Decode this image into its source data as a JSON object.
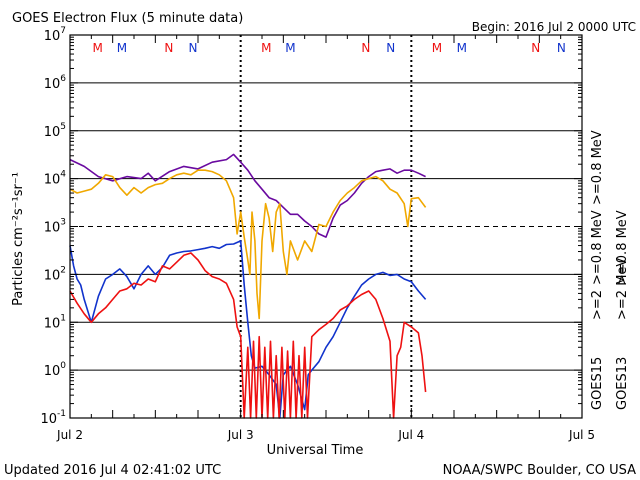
{
  "header": {
    "title": "GOES Electron Flux (5 minute data)",
    "begin": "Begin: 2016 Jul 2 0000 UTC"
  },
  "footer": {
    "updated": "Updated 2016 Jul  4 02:41:02 UTC",
    "credit": "NOAA/SWPC Boulder, CO USA"
  },
  "colors": {
    "red": "#ee1111",
    "orange": "#f0a800",
    "blue": "#1133cc",
    "purple": "#6a0aa0",
    "grid": "#000000"
  },
  "chart_data": {
    "type": "line",
    "title": "GOES Electron Flux (5 minute data)",
    "xlabel": "Universal Time",
    "ylabel": "Particles cm⁻²s⁻¹sr⁻¹",
    "yscale": "log",
    "ylim": [
      0.1,
      10000000
    ],
    "xlim": [
      0,
      72
    ],
    "x_unit": "hours since 2016 Jul 2 0000 UTC",
    "x_ticks": [
      {
        "x": 0,
        "label": "Jul 2"
      },
      {
        "x": 24,
        "label": "Jul 3"
      },
      {
        "x": 48,
        "label": "Jul 4"
      },
      {
        "x": 72,
        "label": "Jul 5"
      }
    ],
    "y_ticks": [
      {
        "v": 0.1,
        "base": "10",
        "exp": "-1"
      },
      {
        "v": 1,
        "base": "10",
        "exp": "0"
      },
      {
        "v": 10,
        "base": "10",
        "exp": "1"
      },
      {
        "v": 100,
        "base": "10",
        "exp": "2"
      },
      {
        "v": 1000,
        "base": "10",
        "exp": "3"
      },
      {
        "v": 10000,
        "base": "10",
        "exp": "4"
      },
      {
        "v": 100000,
        "base": "10",
        "exp": "5"
      },
      {
        "v": 1000000,
        "base": "10",
        "exp": "6"
      },
      {
        "v": 10000000,
        "base": "10",
        "exp": "7"
      }
    ],
    "threshold_line": 1000,
    "day_markers": [
      24,
      48
    ],
    "mn_markers": [
      {
        "x": 3.9,
        "letter": "M",
        "color": "red"
      },
      {
        "x": 7.3,
        "letter": "M",
        "color": "blue"
      },
      {
        "x": 13.9,
        "letter": "N",
        "color": "red"
      },
      {
        "x": 17.3,
        "letter": "N",
        "color": "blue"
      },
      {
        "x": 27.6,
        "letter": "M",
        "color": "red"
      },
      {
        "x": 31.0,
        "letter": "M",
        "color": "blue"
      },
      {
        "x": 41.6,
        "letter": "N",
        "color": "red"
      },
      {
        "x": 45.1,
        "letter": "N",
        "color": "blue"
      },
      {
        "x": 51.6,
        "letter": "M",
        "color": "red"
      },
      {
        "x": 55.1,
        "letter": "M",
        "color": "blue"
      },
      {
        "x": 65.5,
        "letter": "N",
        "color": "red"
      },
      {
        "x": 69.1,
        "letter": "N",
        "color": "blue"
      }
    ],
    "legend": [
      {
        "label": ">=0.8 MeV",
        "color": "orange"
      },
      {
        "label": ">=2 MeV",
        "color": "red"
      },
      {
        "label": ">=0.8 MeV",
        "color": "purple"
      },
      {
        "label": ">=2 MeV",
        "color": "blue"
      }
    ],
    "legend_groups": [
      {
        "label": "GOES13",
        "entries": [
          ">=2",
          ">=0.8 MeV"
        ]
      },
      {
        "label": "GOES15",
        "entries": [
          ">=2",
          ">=0.8 MeV"
        ]
      }
    ],
    "legend_text": {
      "goes13": "GOES13",
      "goes15": "GOES15",
      "ge2": ">=2",
      "ge08mev": ">=0.8 MeV"
    },
    "series": [
      {
        "name": "GOES15 >=0.8 MeV",
        "color": "purple",
        "points": [
          [
            0,
            25000
          ],
          [
            2,
            18000
          ],
          [
            4,
            11000
          ],
          [
            6,
            9000
          ],
          [
            8,
            11000
          ],
          [
            10,
            10000
          ],
          [
            11,
            13000
          ],
          [
            12,
            9000
          ],
          [
            14,
            14000
          ],
          [
            16,
            18000
          ],
          [
            18,
            16000
          ],
          [
            20,
            22000
          ],
          [
            22,
            25000
          ],
          [
            23,
            32000
          ],
          [
            24,
            22000
          ],
          [
            25,
            15000
          ],
          [
            26,
            9000
          ],
          [
            27,
            6000
          ],
          [
            28,
            4000
          ],
          [
            29,
            3500
          ],
          [
            30,
            2500
          ],
          [
            31,
            1800
          ],
          [
            32,
            1800
          ],
          [
            33,
            1300
          ],
          [
            34,
            1000
          ],
          [
            35,
            700
          ],
          [
            36,
            600
          ],
          [
            37,
            1500
          ],
          [
            38,
            2800
          ],
          [
            39,
            3500
          ],
          [
            40,
            5000
          ],
          [
            41,
            8000
          ],
          [
            42,
            11000
          ],
          [
            43,
            14000
          ],
          [
            44,
            15000
          ],
          [
            45,
            16000
          ],
          [
            46,
            13000
          ],
          [
            47,
            15000
          ],
          [
            48,
            15000
          ],
          [
            49,
            13000
          ],
          [
            50,
            11000
          ]
        ]
      },
      {
        "name": "GOES13 >=0.8 MeV",
        "color": "orange",
        "points": [
          [
            0,
            6000
          ],
          [
            1,
            5000
          ],
          [
            2,
            5500
          ],
          [
            3,
            6000
          ],
          [
            4,
            8000
          ],
          [
            5,
            12000
          ],
          [
            6,
            11000
          ],
          [
            7,
            6500
          ],
          [
            8,
            4500
          ],
          [
            9,
            6500
          ],
          [
            10,
            5000
          ],
          [
            11,
            6500
          ],
          [
            12,
            7500
          ],
          [
            13,
            8000
          ],
          [
            14,
            10000
          ],
          [
            15,
            12000
          ],
          [
            16,
            13000
          ],
          [
            17,
            12000
          ],
          [
            18,
            15000
          ],
          [
            19,
            15000
          ],
          [
            20,
            14000
          ],
          [
            21,
            12000
          ],
          [
            22,
            9000
          ],
          [
            23,
            4000
          ],
          [
            23.5,
            700
          ],
          [
            24,
            2000
          ],
          [
            24.5,
            600
          ],
          [
            25,
            200
          ],
          [
            25.3,
            100
          ],
          [
            25.6,
            2000
          ],
          [
            26,
            500
          ],
          [
            26.3,
            40
          ],
          [
            26.6,
            12
          ],
          [
            27,
            500
          ],
          [
            27.5,
            3000
          ],
          [
            28,
            1500
          ],
          [
            28.5,
            300
          ],
          [
            29,
            2000
          ],
          [
            29.5,
            3000
          ],
          [
            30,
            300
          ],
          [
            30.5,
            100
          ],
          [
            31,
            500
          ],
          [
            32,
            200
          ],
          [
            33,
            500
          ],
          [
            34,
            300
          ],
          [
            35,
            1100
          ],
          [
            36,
            1000
          ],
          [
            37,
            2000
          ],
          [
            38,
            3500
          ],
          [
            39,
            5000
          ],
          [
            40,
            6500
          ],
          [
            41,
            9000
          ],
          [
            42,
            10000
          ],
          [
            43,
            11000
          ],
          [
            44,
            9000
          ],
          [
            45,
            6000
          ],
          [
            46,
            5000
          ],
          [
            47,
            3000
          ],
          [
            47.5,
            1000
          ],
          [
            48,
            3800
          ],
          [
            49,
            4000
          ],
          [
            50,
            2500
          ]
        ]
      },
      {
        "name": "GOES15 >=2 MeV",
        "color": "blue",
        "points": [
          [
            0,
            400
          ],
          [
            0.5,
            150
          ],
          [
            1,
            80
          ],
          [
            1.5,
            60
          ],
          [
            2,
            30
          ],
          [
            3,
            10
          ],
          [
            4,
            35
          ],
          [
            5,
            80
          ],
          [
            6,
            100
          ],
          [
            7,
            130
          ],
          [
            8,
            90
          ],
          [
            9,
            50
          ],
          [
            10,
            100
          ],
          [
            11,
            150
          ],
          [
            12,
            100
          ],
          [
            13,
            140
          ],
          [
            14,
            250
          ],
          [
            15,
            280
          ],
          [
            16,
            300
          ],
          [
            17,
            310
          ],
          [
            18,
            330
          ],
          [
            19,
            350
          ],
          [
            20,
            380
          ],
          [
            21,
            350
          ],
          [
            22,
            420
          ],
          [
            23,
            430
          ],
          [
            24,
            500
          ],
          [
            24.5,
            60
          ],
          [
            25,
            10
          ],
          [
            25.5,
            2
          ],
          [
            26,
            1.1
          ],
          [
            27,
            1.2
          ],
          [
            28,
            0.8
          ],
          [
            29,
            0.5
          ],
          [
            29.5,
            0.1
          ],
          [
            30,
            0.8
          ],
          [
            31,
            1.2
          ],
          [
            32,
            0.5
          ],
          [
            33,
            0.15
          ],
          [
            33.5,
            0.8
          ],
          [
            34,
            1
          ],
          [
            35,
            1.5
          ],
          [
            36,
            3
          ],
          [
            37,
            5
          ],
          [
            38,
            10
          ],
          [
            39,
            20
          ],
          [
            40,
            35
          ],
          [
            41,
            60
          ],
          [
            42,
            80
          ],
          [
            43,
            100
          ],
          [
            44,
            110
          ],
          [
            45,
            95
          ],
          [
            46,
            100
          ],
          [
            47,
            80
          ],
          [
            48,
            70
          ],
          [
            49,
            45
          ],
          [
            50,
            30
          ]
        ]
      },
      {
        "name": "GOES13 >=2 MeV",
        "color": "red",
        "points": [
          [
            0,
            45
          ],
          [
            1,
            25
          ],
          [
            2,
            15
          ],
          [
            3,
            10
          ],
          [
            4,
            15
          ],
          [
            5,
            20
          ],
          [
            6,
            30
          ],
          [
            7,
            45
          ],
          [
            8,
            50
          ],
          [
            9,
            65
          ],
          [
            10,
            60
          ],
          [
            11,
            80
          ],
          [
            12,
            70
          ],
          [
            13,
            150
          ],
          [
            14,
            130
          ],
          [
            15,
            180
          ],
          [
            16,
            250
          ],
          [
            17,
            280
          ],
          [
            18,
            200
          ],
          [
            19,
            120
          ],
          [
            20,
            90
          ],
          [
            21,
            80
          ],
          [
            22,
            65
          ],
          [
            23,
            30
          ],
          [
            23.5,
            8
          ],
          [
            24,
            5
          ],
          [
            24.5,
            0.1
          ],
          [
            25,
            3
          ],
          [
            25.4,
            0.1
          ],
          [
            25.8,
            4
          ],
          [
            26.2,
            0.1
          ],
          [
            26.6,
            5
          ],
          [
            27,
            0.1
          ],
          [
            27.4,
            3
          ],
          [
            27.8,
            0.1
          ],
          [
            28.2,
            4
          ],
          [
            28.6,
            0.1
          ],
          [
            29,
            2
          ],
          [
            29.4,
            0.1
          ],
          [
            29.8,
            3
          ],
          [
            30.2,
            0.1
          ],
          [
            30.6,
            2.5
          ],
          [
            31,
            0.1
          ],
          [
            31.4,
            4
          ],
          [
            31.8,
            0.1
          ],
          [
            32.2,
            2
          ],
          [
            32.6,
            0.1
          ],
          [
            33,
            3
          ],
          [
            33.4,
            0.1
          ],
          [
            34,
            5
          ],
          [
            35,
            7
          ],
          [
            36,
            9
          ],
          [
            37,
            12
          ],
          [
            38,
            18
          ],
          [
            39,
            22
          ],
          [
            40,
            30
          ],
          [
            41,
            38
          ],
          [
            42,
            45
          ],
          [
            43,
            30
          ],
          [
            44,
            12
          ],
          [
            45,
            4
          ],
          [
            45.5,
            0.1
          ],
          [
            46,
            2
          ],
          [
            46.5,
            3
          ],
          [
            47,
            10
          ],
          [
            48,
            8
          ],
          [
            49,
            6
          ],
          [
            49.5,
            2
          ],
          [
            50,
            0.35
          ]
        ]
      }
    ]
  }
}
